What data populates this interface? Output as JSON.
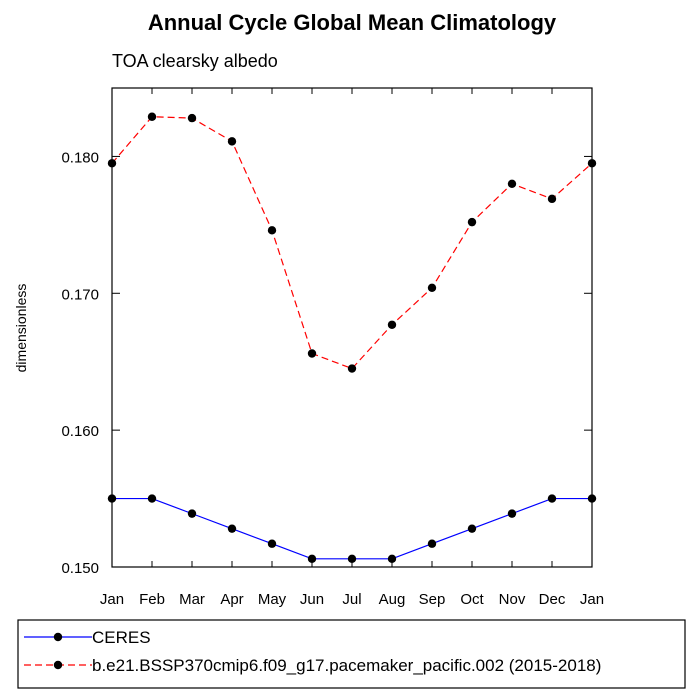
{
  "chart_data": {
    "type": "line",
    "title": "Annual Cycle Global Mean Climatology",
    "subtitle": "TOA clearsky albedo",
    "xlabel": "",
    "ylabel": "dimensionless",
    "categories": [
      "Jan",
      "Feb",
      "Mar",
      "Apr",
      "May",
      "Jun",
      "Jul",
      "Aug",
      "Sep",
      "Oct",
      "Nov",
      "Dec",
      "Jan"
    ],
    "ylim": [
      0.15,
      0.185
    ],
    "yticks": [
      {
        "value": 0.15,
        "label": "0.150"
      },
      {
        "value": 0.16,
        "label": "0.160"
      },
      {
        "value": 0.17,
        "label": "0.170"
      },
      {
        "value": 0.18,
        "label": "0.180"
      }
    ],
    "grid": false,
    "legend": "bottom",
    "series": [
      {
        "name": "CERES",
        "color": "#0000ff",
        "line_style": "solid",
        "marker_color": "#000000",
        "values": [
          0.155,
          0.155,
          0.1539,
          0.1528,
          0.1517,
          0.1506,
          0.1506,
          0.1506,
          0.1517,
          0.1528,
          0.1539,
          0.155,
          0.155
        ]
      },
      {
        "name": "b.e21.BSSP370cmip6.f09_g17.pacemaker_pacific.002 (2015-2018)",
        "color": "#ff0000",
        "line_style": "dashed",
        "marker_color": "#000000",
        "values": [
          0.1795,
          0.1829,
          0.1828,
          0.1811,
          0.1746,
          0.1656,
          0.1645,
          0.1677,
          0.1704,
          0.1752,
          0.178,
          0.1769,
          0.1795
        ]
      }
    ]
  }
}
